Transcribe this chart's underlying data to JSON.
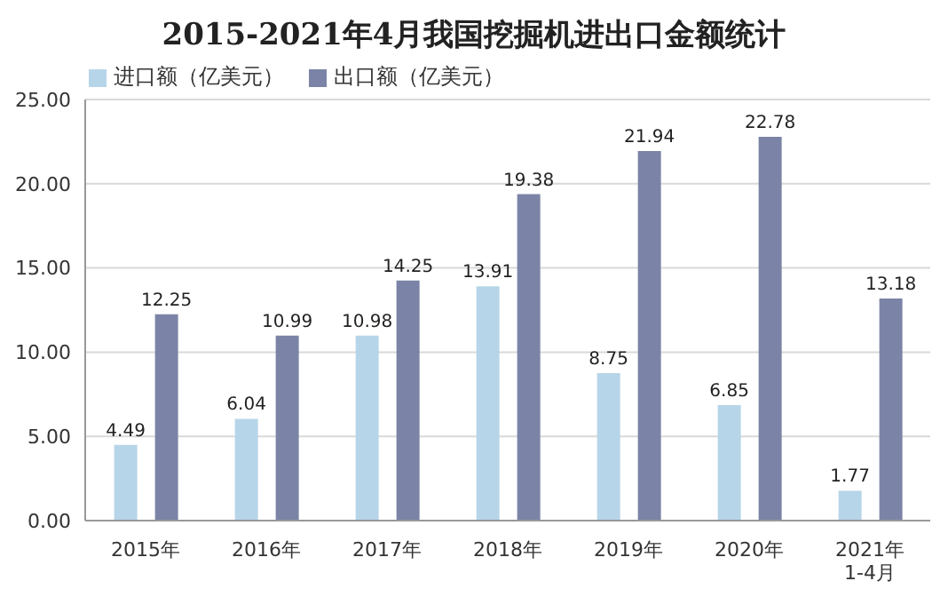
{
  "chart_data": {
    "type": "bar",
    "title": "2015-2021年4月我国挖掘机进出口金额统计",
    "categories": [
      "2015年",
      "2016年",
      "2017年",
      "2018年",
      "2019年",
      "2020年",
      "2021年\n1-4月"
    ],
    "series": [
      {
        "name": "进口额（亿美元）",
        "color": "#b7d5e8",
        "values": [
          4.49,
          6.04,
          10.98,
          13.91,
          8.75,
          6.85,
          1.77
        ]
      },
      {
        "name": "出口额（亿美元）",
        "color": "#7b84a6",
        "values": [
          12.25,
          10.99,
          14.25,
          19.38,
          21.94,
          22.78,
          13.18
        ]
      }
    ],
    "ylim": [
      0,
      25
    ],
    "yticks": [
      {
        "value": 0,
        "label": "0.00"
      },
      {
        "value": 5,
        "label": "5.00"
      },
      {
        "value": 10,
        "label": "10.00"
      },
      {
        "value": 15,
        "label": "15.00"
      },
      {
        "value": 20,
        "label": "20.00"
      },
      {
        "value": 25,
        "label": "25.00"
      }
    ],
    "grid": "y",
    "legend": "top",
    "data_labels": true
  }
}
